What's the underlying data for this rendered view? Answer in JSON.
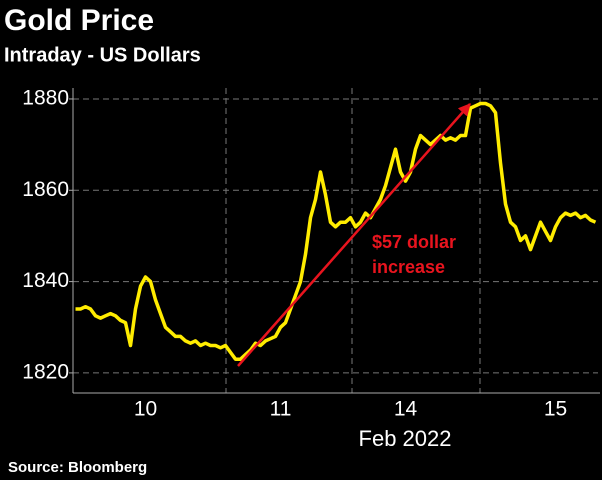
{
  "chart_data": {
    "type": "line",
    "title": "Gold Price",
    "subtitle": "Intraday - US Dollars",
    "source": "Source: Bloomberg",
    "x_sublabel": "Feb 2022",
    "annotation": [
      "$57 dollar",
      "increase"
    ],
    "annotation_color": "#e8141e",
    "color": "#ffec00",
    "grid": true,
    "ylim": [
      1815.6,
      1882.4
    ],
    "yticks": [
      1820,
      1840,
      1860,
      1880
    ],
    "categories": [
      null,
      null,
      null,
      null,
      null,
      null,
      null,
      null,
      null,
      null,
      null,
      null,
      null,
      null,
      "10",
      null,
      null,
      null,
      null,
      null,
      null,
      null,
      null,
      null,
      null,
      null,
      null,
      null,
      null,
      null,
      null,
      null,
      null,
      null,
      null,
      null,
      null,
      null,
      null,
      null,
      null,
      "11",
      null,
      null,
      null,
      null,
      null,
      null,
      null,
      null,
      null,
      null,
      null,
      null,
      null,
      null,
      null,
      null,
      null,
      null,
      null,
      null,
      null,
      null,
      null,
      null,
      "14",
      null,
      null,
      null,
      null,
      null,
      null,
      null,
      null,
      null,
      null,
      null,
      null,
      null,
      null,
      null,
      null,
      null,
      null,
      null,
      null,
      null,
      null,
      null,
      null,
      null,
      null,
      null,
      null,
      null,
      "15",
      null,
      null,
      null,
      null,
      null,
      null,
      null,
      null
    ],
    "values": [
      1834,
      1834,
      1834.5,
      1834,
      1832.5,
      1832,
      1832.5,
      1833,
      1832.5,
      1831.5,
      1831,
      1826,
      1834,
      1839,
      1841,
      1840,
      1836,
      1833,
      1830,
      1829,
      1828,
      1828,
      1827,
      1826.5,
      1827,
      1826,
      1826.5,
      1826,
      1826,
      1825.5,
      1826,
      1824.5,
      1823,
      1823,
      1824,
      1825,
      1826.5,
      1826,
      1827,
      1827.5,
      1828,
      1830,
      1831,
      1834,
      1837,
      1840,
      1846,
      1854,
      1858,
      1864,
      1859,
      1853,
      1852,
      1853,
      1853,
      1854,
      1852,
      1853,
      1855,
      1854,
      1856,
      1858,
      1861,
      1865,
      1869,
      1864,
      1862,
      1864,
      1869,
      1872,
      1871,
      1870,
      1871,
      1872,
      1871,
      1871.5,
      1871,
      1872,
      1872,
      1878,
      1878.5,
      1879,
      1879,
      1878.5,
      1877,
      1866,
      1857,
      1853,
      1852,
      1849,
      1850,
      1847,
      1850,
      1853,
      1851,
      1849,
      1852,
      1854,
      1855,
      1854.5,
      1855,
      1854,
      1854.5,
      1853.5,
      1853
    ]
  }
}
